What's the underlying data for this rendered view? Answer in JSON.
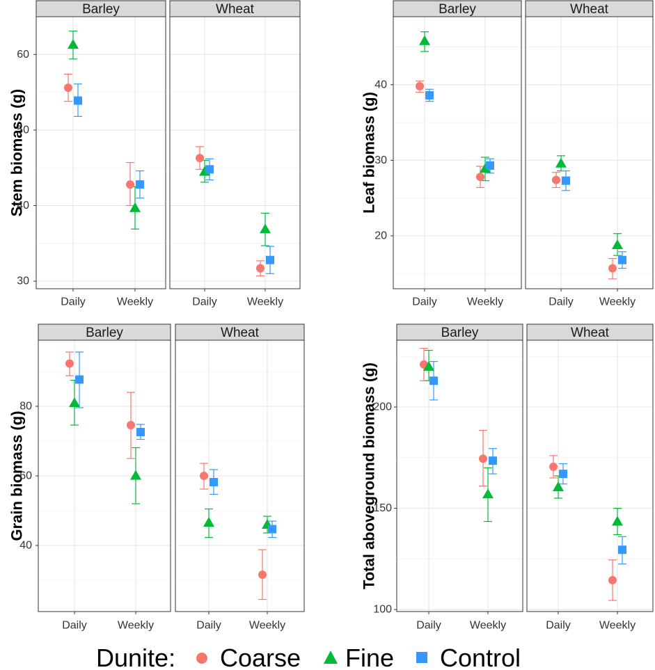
{
  "legend": {
    "title": "Dunite:",
    "items": [
      {
        "label": "Coarse",
        "color": "#F8766D",
        "shape": "circle"
      },
      {
        "label": "Fine",
        "color": "#00BA38",
        "shape": "triangle"
      },
      {
        "label": "Control",
        "color": "#3399FF",
        "shape": "square"
      }
    ]
  },
  "chart_data": [
    {
      "type": "scatter",
      "ylabel": "Stem biomass (g)",
      "ylim": [
        29,
        65
      ],
      "yticks": [
        30,
        40,
        50,
        60
      ],
      "x_categories": [
        "Daily",
        "Weekly"
      ],
      "panels": [
        {
          "label": "Barley",
          "series": [
            {
              "name": "Coarse",
              "points": [
                {
                  "x": "Daily",
                  "y": 55.6,
                  "lo": 53.8,
                  "hi": 57.4
                },
                {
                  "x": "Weekly",
                  "y": 42.8,
                  "lo": 40.0,
                  "hi": 45.7
                }
              ]
            },
            {
              "name": "Fine",
              "points": [
                {
                  "x": "Daily",
                  "y": 61.3,
                  "lo": 59.4,
                  "hi": 63.1
                },
                {
                  "x": "Weekly",
                  "y": 39.7,
                  "lo": 36.9,
                  "hi": 42.5
                }
              ]
            },
            {
              "name": "Control",
              "points": [
                {
                  "x": "Daily",
                  "y": 53.9,
                  "lo": 51.8,
                  "hi": 56.1
                },
                {
                  "x": "Weekly",
                  "y": 42.8,
                  "lo": 41.0,
                  "hi": 44.6
                }
              ]
            }
          ]
        },
        {
          "label": "Wheat",
          "series": [
            {
              "name": "Coarse",
              "points": [
                {
                  "x": "Daily",
                  "y": 46.3,
                  "lo": 44.8,
                  "hi": 47.8
                },
                {
                  "x": "Weekly",
                  "y": 31.7,
                  "lo": 30.7,
                  "hi": 32.7
                }
              ]
            },
            {
              "name": "Fine",
              "points": [
                {
                  "x": "Daily",
                  "y": 44.5,
                  "lo": 43.1,
                  "hi": 46.0
                },
                {
                  "x": "Weekly",
                  "y": 36.9,
                  "lo": 34.7,
                  "hi": 39.0
                }
              ]
            },
            {
              "name": "Control",
              "points": [
                {
                  "x": "Daily",
                  "y": 44.8,
                  "lo": 43.4,
                  "hi": 46.2
                },
                {
                  "x": "Weekly",
                  "y": 32.8,
                  "lo": 31.0,
                  "hi": 34.6
                }
              ]
            }
          ]
        }
      ]
    },
    {
      "type": "scatter",
      "ylabel": "Leaf biomass (g)",
      "ylim": [
        13,
        49
      ],
      "yticks": [
        20,
        30,
        40
      ],
      "x_categories": [
        "Daily",
        "Weekly"
      ],
      "panels": [
        {
          "label": "Barley",
          "series": [
            {
              "name": "Coarse",
              "points": [
                {
                  "x": "Daily",
                  "y": 39.8,
                  "lo": 39.0,
                  "hi": 40.5
                },
                {
                  "x": "Weekly",
                  "y": 27.8,
                  "lo": 26.4,
                  "hi": 29.2
                }
              ]
            },
            {
              "name": "Fine",
              "points": [
                {
                  "x": "Daily",
                  "y": 45.8,
                  "lo": 44.4,
                  "hi": 47.0
                },
                {
                  "x": "Weekly",
                  "y": 28.9,
                  "lo": 27.3,
                  "hi": 30.4
                }
              ]
            },
            {
              "name": "Control",
              "points": [
                {
                  "x": "Daily",
                  "y": 38.6,
                  "lo": 37.8,
                  "hi": 39.4
                },
                {
                  "x": "Weekly",
                  "y": 29.3,
                  "lo": 28.3,
                  "hi": 30.2
                }
              ]
            }
          ]
        },
        {
          "label": "Wheat",
          "series": [
            {
              "name": "Coarse",
              "points": [
                {
                  "x": "Daily",
                  "y": 27.4,
                  "lo": 26.4,
                  "hi": 28.4
                },
                {
                  "x": "Weekly",
                  "y": 15.7,
                  "lo": 14.3,
                  "hi": 17.0
                }
              ]
            },
            {
              "name": "Fine",
              "points": [
                {
                  "x": "Daily",
                  "y": 29.6,
                  "lo": 28.6,
                  "hi": 30.6
                },
                {
                  "x": "Weekly",
                  "y": 18.8,
                  "lo": 17.4,
                  "hi": 20.3
                }
              ]
            },
            {
              "name": "Control",
              "points": [
                {
                  "x": "Daily",
                  "y": 27.3,
                  "lo": 26.0,
                  "hi": 28.6
                },
                {
                  "x": "Weekly",
                  "y": 16.8,
                  "lo": 15.7,
                  "hi": 17.9
                }
              ]
            }
          ]
        }
      ]
    },
    {
      "type": "scatter",
      "ylabel": "Grain biomass (g)",
      "ylim": [
        21,
        99
      ],
      "yticks": [
        40,
        60,
        80
      ],
      "x_categories": [
        "Daily",
        "Weekly"
      ],
      "panels": [
        {
          "label": "Barley",
          "series": [
            {
              "name": "Coarse",
              "points": [
                {
                  "x": "Daily",
                  "y": 92.3,
                  "lo": 88.8,
                  "hi": 95.6
                },
                {
                  "x": "Weekly",
                  "y": 74.6,
                  "lo": 65.0,
                  "hi": 84.0
                }
              ]
            },
            {
              "name": "Fine",
              "points": [
                {
                  "x": "Daily",
                  "y": 81.0,
                  "lo": 74.6,
                  "hi": 87.5
                },
                {
                  "x": "Weekly",
                  "y": 60.1,
                  "lo": 52.0,
                  "hi": 68.1
                }
              ]
            },
            {
              "name": "Control",
              "points": [
                {
                  "x": "Daily",
                  "y": 87.7,
                  "lo": 79.6,
                  "hi": 95.6
                },
                {
                  "x": "Weekly",
                  "y": 72.6,
                  "lo": 70.5,
                  "hi": 74.8
                }
              ]
            }
          ]
        },
        {
          "label": "Wheat",
          "series": [
            {
              "name": "Coarse",
              "points": [
                {
                  "x": "Daily",
                  "y": 60.0,
                  "lo": 56.2,
                  "hi": 63.6
                },
                {
                  "x": "Weekly",
                  "y": 31.6,
                  "lo": 24.5,
                  "hi": 38.8
                }
              ]
            },
            {
              "name": "Fine",
              "points": [
                {
                  "x": "Daily",
                  "y": 46.6,
                  "lo": 42.3,
                  "hi": 50.5
                },
                {
                  "x": "Weekly",
                  "y": 46.0,
                  "lo": 43.6,
                  "hi": 48.4
                }
              ]
            },
            {
              "name": "Control",
              "points": [
                {
                  "x": "Daily",
                  "y": 58.2,
                  "lo": 54.7,
                  "hi": 61.8
                },
                {
                  "x": "Weekly",
                  "y": 44.7,
                  "lo": 42.3,
                  "hi": 47.0
                }
              ]
            }
          ]
        }
      ]
    },
    {
      "type": "scatter",
      "ylabel": "Total aboveground biomass (g)",
      "ylim": [
        99,
        233
      ],
      "yticks": [
        100,
        150,
        200
      ],
      "x_categories": [
        "Daily",
        "Weekly"
      ],
      "panels": [
        {
          "label": "Barley",
          "series": [
            {
              "name": "Coarse",
              "points": [
                {
                  "x": "Daily",
                  "y": 221.0,
                  "lo": 213.0,
                  "hi": 229.0
                },
                {
                  "x": "Weekly",
                  "y": 174.5,
                  "lo": 161.0,
                  "hi": 188.5
                }
              ]
            },
            {
              "name": "Fine",
              "points": [
                {
                  "x": "Daily",
                  "y": 220.0,
                  "lo": 213.0,
                  "hi": 228.0
                },
                {
                  "x": "Weekly",
                  "y": 157.0,
                  "lo": 143.5,
                  "hi": 170.0
                }
              ]
            },
            {
              "name": "Control",
              "points": [
                {
                  "x": "Daily",
                  "y": 213.0,
                  "lo": 203.5,
                  "hi": 222.5
                },
                {
                  "x": "Weekly",
                  "y": 173.5,
                  "lo": 167.0,
                  "hi": 179.5
                }
              ]
            }
          ]
        },
        {
          "label": "Wheat",
          "series": [
            {
              "name": "Coarse",
              "points": [
                {
                  "x": "Daily",
                  "y": 170.5,
                  "lo": 165.0,
                  "hi": 176.0
                },
                {
                  "x": "Weekly",
                  "y": 114.5,
                  "lo": 104.5,
                  "hi": 124.5
                }
              ]
            },
            {
              "name": "Fine",
              "points": [
                {
                  "x": "Daily",
                  "y": 160.5,
                  "lo": 155.0,
                  "hi": 166.0
                },
                {
                  "x": "Weekly",
                  "y": 143.5,
                  "lo": 137.0,
                  "hi": 150.0
                }
              ]
            },
            {
              "name": "Control",
              "points": [
                {
                  "x": "Daily",
                  "y": 167.0,
                  "lo": 162.0,
                  "hi": 172.0
                },
                {
                  "x": "Weekly",
                  "y": 129.5,
                  "lo": 122.5,
                  "hi": 136.0
                }
              ]
            }
          ]
        }
      ]
    }
  ]
}
